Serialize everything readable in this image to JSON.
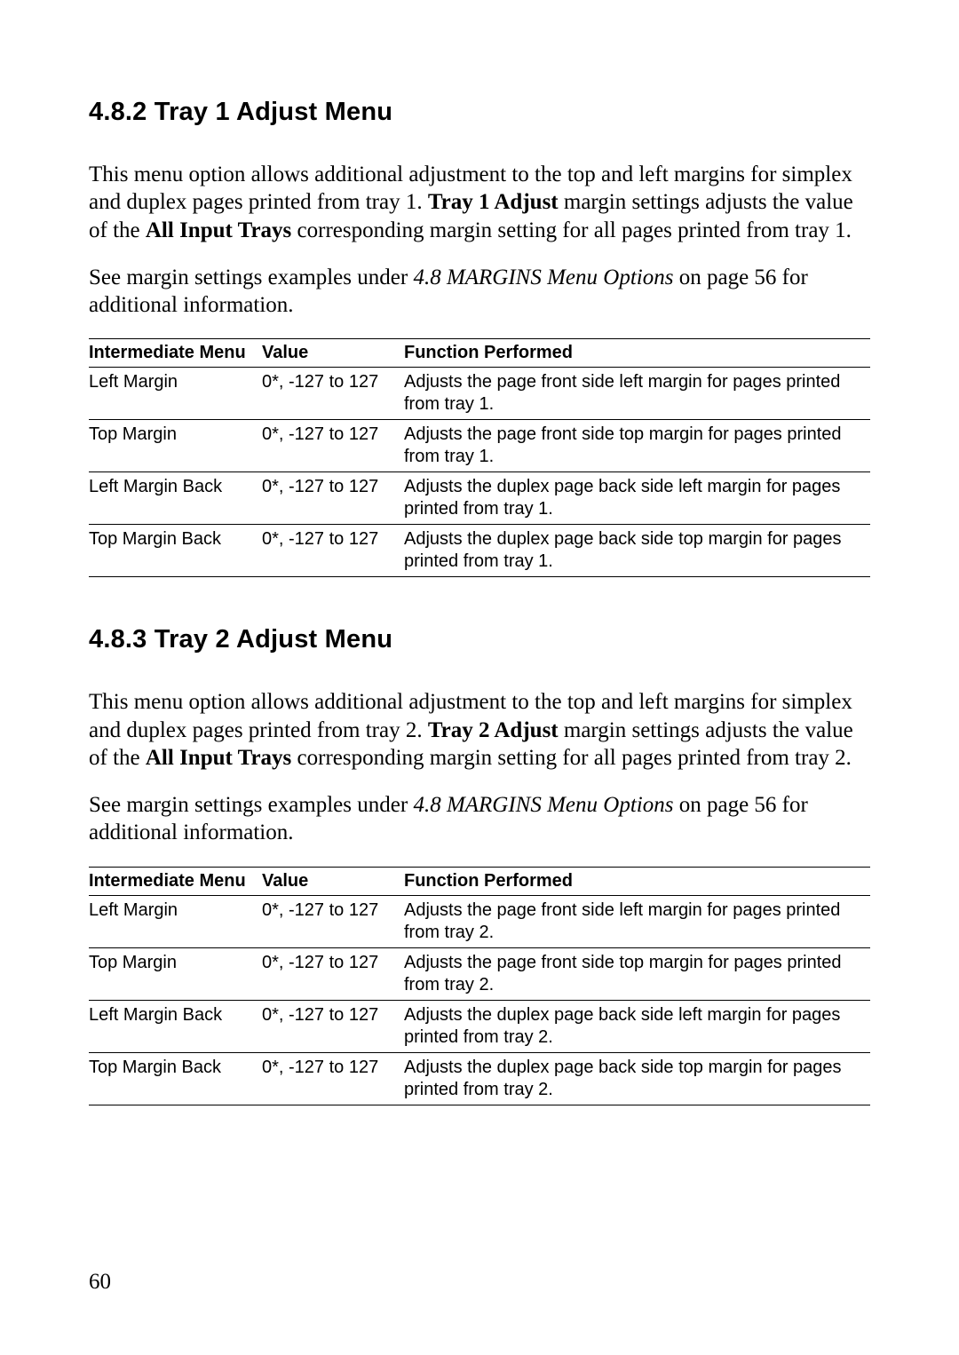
{
  "page_number": "60",
  "sections": [
    {
      "heading": "4.8.2 Tray 1 Adjust Menu",
      "para1_part1": "This menu option allows additional adjustment to the top and left margins for simplex and duplex pages printed from tray 1. ",
      "para1_bold1": "Tray 1 Adjust",
      "para1_part2": " margin settings adjusts the value of the ",
      "para1_bold2": "All Input Trays",
      "para1_part3": " corresponding margin setting for all pages printed from tray 1.",
      "para2_part1": "See margin settings examples under ",
      "para2_italic": "4.8 MARGINS Menu Options",
      "para2_part2": " on page 56 for additional information.",
      "table": {
        "headers": [
          "Intermediate Menu",
          "Value",
          "Function Performed"
        ],
        "rows": [
          [
            "Left Margin",
            "0*, -127 to 127",
            "Adjusts the page front side left margin for pages printed from tray 1."
          ],
          [
            "Top Margin",
            "0*, -127 to 127",
            "Adjusts the page front side top margin for pages printed from tray 1."
          ],
          [
            "Left Margin Back",
            "0*, -127 to 127",
            "Adjusts the duplex page back side left margin for pages printed from tray 1."
          ],
          [
            "Top Margin Back",
            "0*, -127 to 127",
            "Adjusts the duplex page back side top margin for pages printed from tray 1."
          ]
        ]
      }
    },
    {
      "heading": "4.8.3 Tray 2 Adjust Menu",
      "para1_part1": "This menu option allows additional adjustment to the top and left margins for simplex and duplex pages printed from tray 2. ",
      "para1_bold1": "Tray 2 Adjust",
      "para1_part2": " margin settings adjusts the value of the ",
      "para1_bold2": "All Input Trays",
      "para1_part3": " corresponding margin setting for all pages printed from tray 2.",
      "para2_part1": "See margin settings examples under ",
      "para2_italic": "4.8 MARGINS Menu Options",
      "para2_part2": " on page 56 for additional information.",
      "table": {
        "headers": [
          "Intermediate Menu",
          "Value",
          "Function Performed"
        ],
        "rows": [
          [
            "Left Margin",
            "0*, -127 to 127",
            "Adjusts the page front side left margin for pages printed from tray 2."
          ],
          [
            "Top Margin",
            "0*, -127 to 127",
            "Adjusts the page front side top margin for pages printed from tray 2."
          ],
          [
            "Left Margin Back",
            "0*, -127 to 127",
            "Adjusts the duplex page back side left margin for pages printed from tray 2."
          ],
          [
            "Top Margin Back",
            "0*, -127 to 127",
            "Adjusts the duplex page back side top margin for pages printed from tray 2."
          ]
        ]
      }
    }
  ]
}
